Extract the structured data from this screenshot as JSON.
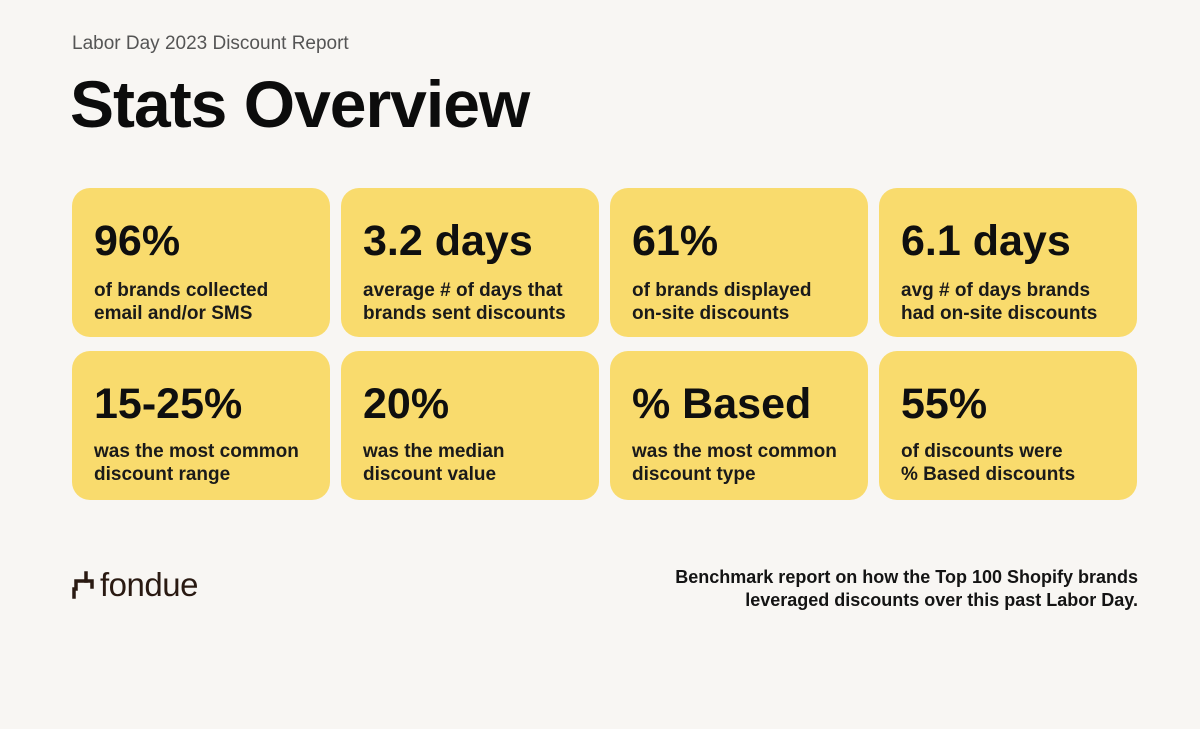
{
  "header": {
    "subtitle": "Labor Day 2023 Discount Report",
    "title": "Stats Overview"
  },
  "stats": [
    {
      "value": "96%",
      "line1": "of brands collected",
      "line2": "email and/or SMS"
    },
    {
      "value": "3.2 days",
      "line1": "average # of days that",
      "line2": "brands sent discounts"
    },
    {
      "value": "61%",
      "line1": "of brands displayed",
      "line2": "on-site discounts"
    },
    {
      "value": "6.1 days",
      "line1": "avg # of days brands",
      "line2": "had on-site discounts"
    },
    {
      "value": "15-25%",
      "line1": "was the most common",
      "line2": "discount range"
    },
    {
      "value": "20%",
      "line1": "was the median",
      "line2": "discount value"
    },
    {
      "value": "% Based",
      "line1": "was the most common",
      "line2": "discount type"
    },
    {
      "value": "55%",
      "line1": "of discounts were",
      "line2": "% Based discounts"
    }
  ],
  "footer": {
    "logo_text": "fondue",
    "logo_icon": "fondue-logo-icon",
    "tagline_line1": "Benchmark report on how the Top 100 Shopify brands",
    "tagline_line2": "leveraged discounts over this past Labor Day."
  },
  "colors": {
    "background": "#f8f6f3",
    "card": "#f9db6d",
    "logo": "#2a1a12"
  }
}
